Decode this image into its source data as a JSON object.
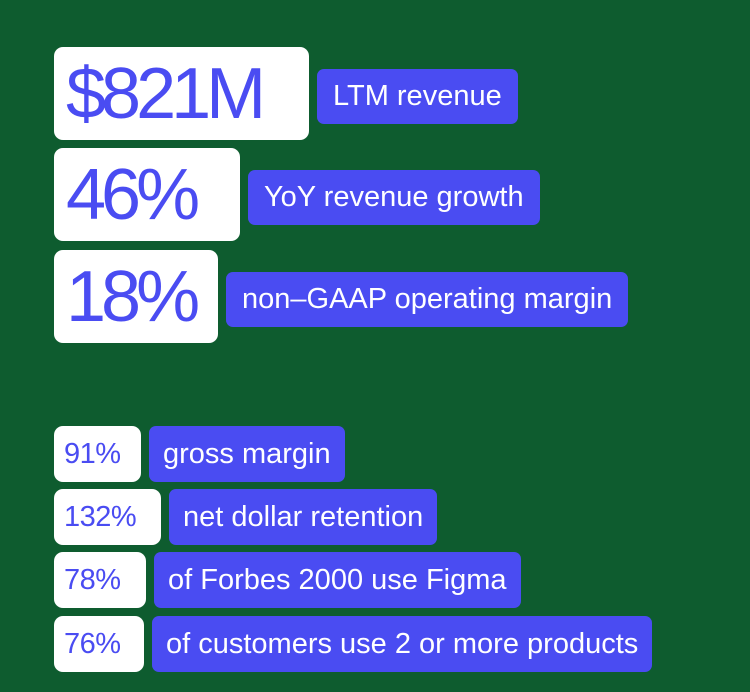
{
  "headline_stats": [
    {
      "value": "$821M",
      "label": "LTM revenue"
    },
    {
      "value": "46%",
      "label": "YoY revenue growth"
    },
    {
      "value": "18%",
      "label": "non–GAAP operating margin"
    }
  ],
  "secondary_stats": [
    {
      "value": "91%",
      "label": "gross margin"
    },
    {
      "value": "132%",
      "label": "net dollar retention"
    },
    {
      "value": "78%",
      "label": "of Forbes 2000 use Figma"
    },
    {
      "value": "76%",
      "label": "of customers use 2 or more products"
    }
  ],
  "colors": {
    "background": "#0e5c2f",
    "accent": "#4a4cf2",
    "value_background": "#ffffff"
  }
}
